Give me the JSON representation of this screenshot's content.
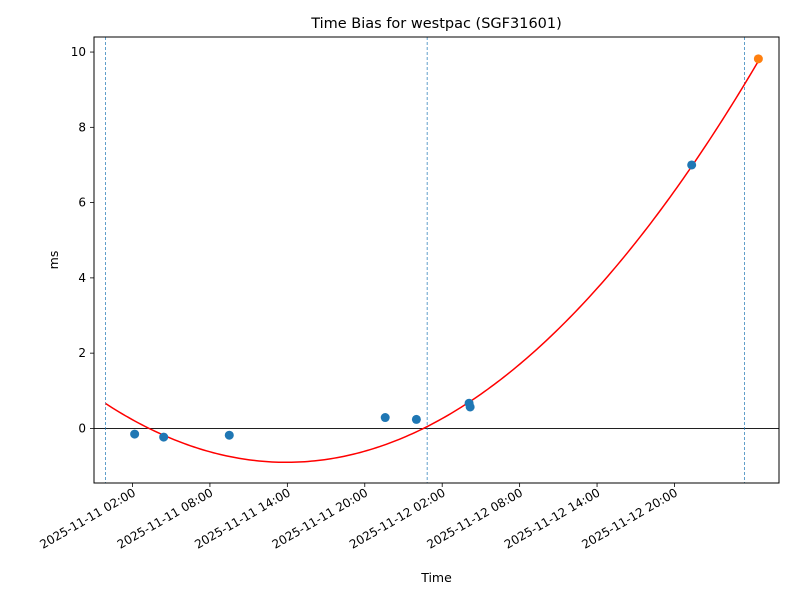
{
  "chart_data": {
    "type": "scatter",
    "title": "Time Bias for westpac (SGF31601)",
    "xlabel": "Time",
    "ylabel": "ms",
    "x_unit": "datetime",
    "xlim": [
      "2025-11-10T23:01:00",
      "2025-11-13T04:06:00"
    ],
    "ylim": [
      -1.45,
      10.4
    ],
    "grid": false,
    "legend": "none",
    "x_ticks": [
      {
        "t": "2025-11-11T02:00",
        "label": "2025-11-11 02:00"
      },
      {
        "t": "2025-11-11T08:00",
        "label": "2025-11-11 08:00"
      },
      {
        "t": "2025-11-11T14:00",
        "label": "2025-11-11 14:00"
      },
      {
        "t": "2025-11-11T20:00",
        "label": "2025-11-11 20:00"
      },
      {
        "t": "2025-11-12T02:00",
        "label": "2025-11-12 02:00"
      },
      {
        "t": "2025-11-12T08:00",
        "label": "2025-11-12 08:00"
      },
      {
        "t": "2025-11-12T14:00",
        "label": "2025-11-12 14:00"
      },
      {
        "t": "2025-11-12T20:00",
        "label": "2025-11-12 20:00"
      }
    ],
    "y_ticks": [
      0,
      2,
      4,
      6,
      8,
      10
    ],
    "series": [
      {
        "color": "#1f77b4",
        "points": [
          {
            "x": "2025-11-11T02:10",
            "y": -0.15
          },
          {
            "x": "2025-11-11T04:25",
            "y": -0.23
          },
          {
            "x": "2025-11-11T09:30",
            "y": -0.18
          },
          {
            "x": "2025-11-11T21:35",
            "y": 0.29
          },
          {
            "x": "2025-11-12T00:00",
            "y": 0.24
          },
          {
            "x": "2025-11-12T04:05",
            "y": 0.67
          },
          {
            "x": "2025-11-12T04:10",
            "y": 0.57
          },
          {
            "x": "2025-11-12T21:20",
            "y": 7.0
          }
        ]
      },
      {
        "color": "#ff7f0e",
        "points": [
          {
            "x": "2025-11-13T02:30",
            "y": 9.82
          }
        ]
      }
    ],
    "fit_curve": {
      "type": "quadratic",
      "color": "#ff0000",
      "x_range": [
        "2025-11-10T23:55",
        "2025-11-13T02:30"
      ],
      "vertex": {
        "x": "2025-11-11T13:55",
        "y": -0.9
      },
      "end_value": 9.76
    },
    "vertical_lines": [
      {
        "x": "2025-11-10T23:55",
        "color": "#1f77b4",
        "style": "dashed"
      },
      {
        "x": "2025-11-12T00:50",
        "color": "#1f77b4",
        "style": "dashed"
      },
      {
        "x": "2025-11-13T01:25",
        "color": "#1f77b4",
        "style": "dashed"
      }
    ],
    "horizontal_lines": [
      {
        "y": 0,
        "color": "#000000",
        "style": "solid"
      }
    ]
  }
}
